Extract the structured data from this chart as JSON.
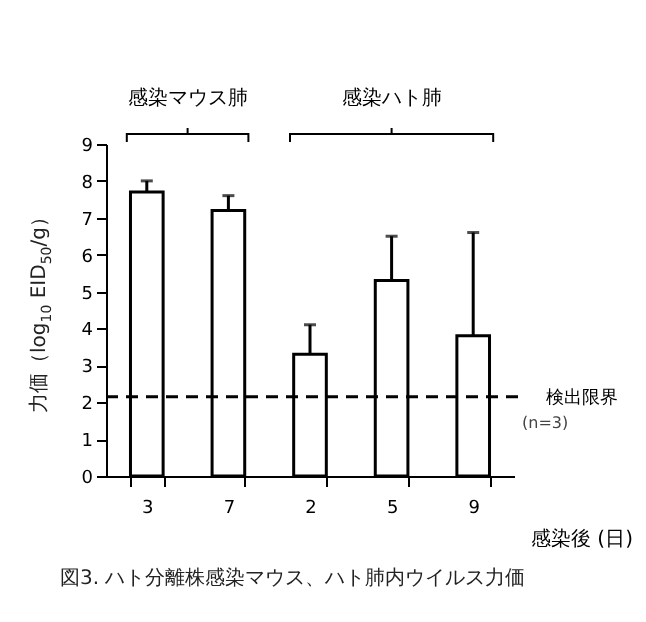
{
  "chart_data": {
    "type": "bar",
    "ylabel": "力価（log$_{10}$ EID$_{50}$/g）",
    "xlabel": "感染後 (日)",
    "categories": [
      "3",
      "7",
      "2",
      "5",
      "9"
    ],
    "values": [
      7.7,
      7.2,
      3.3,
      5.3,
      3.8
    ],
    "errors": [
      [
        7.7,
        8.0
      ],
      [
        7.2,
        7.6
      ],
      [
        3.3,
        4.1
      ],
      [
        5.3,
        6.5
      ],
      [
        3.8,
        6.6
      ]
    ],
    "color": "#ffffff",
    "ylim": [
      0,
      9
    ],
    "yticks": [
      0,
      1,
      2,
      3,
      4,
      5,
      6,
      7,
      8,
      9
    ],
    "ref_lines": [
      {
        "axis": "y",
        "value": 2.15,
        "label": "検出限界",
        "line_style": "dashed",
        "color": "#000000"
      }
    ],
    "annotations": [
      "感染マウス肺",
      "感染ハト肺",
      "(n=3)",
      "図3. ハト分離株感染マウス、ハト肺内ウイルス力価"
    ],
    "grid": false
  }
}
